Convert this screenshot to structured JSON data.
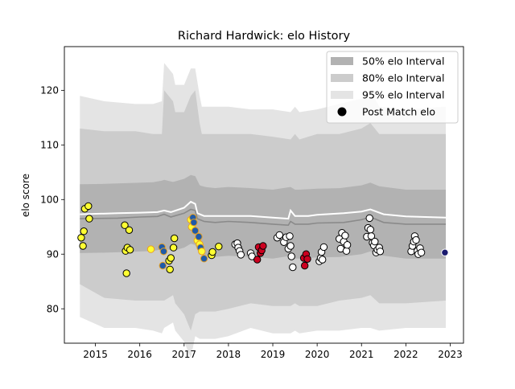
{
  "chart_data": {
    "type": "scatter",
    "title": "Richard Hardwick: elo History",
    "xlabel": "",
    "ylabel": "elo score",
    "xlim": [
      2014.3,
      2023.3
    ],
    "ylim": [
      73.7,
      128
    ],
    "x_ticks": [
      2015,
      2016,
      2017,
      2018,
      2019,
      2020,
      2021,
      2022,
      2023
    ],
    "y_ticks": [
      80,
      90,
      100,
      110,
      120
    ],
    "grid": false,
    "legend_position": "top-right",
    "legend": [
      {
        "label": "50% elo Interval",
        "kind": "band",
        "color": "#b2b2b2"
      },
      {
        "label": "80% elo Interval",
        "kind": "band",
        "color": "#cccccc"
      },
      {
        "label": "95% elo Interval",
        "kind": "band",
        "color": "#e4e4e4"
      },
      {
        "label": "Post Match elo",
        "kind": "marker",
        "color": "#000000"
      }
    ],
    "bands": {
      "x": [
        2014.65,
        2015.2,
        2015.9,
        2016.3,
        2016.5,
        2016.55,
        2016.75,
        2016.8,
        2017.0,
        2017.15,
        2017.25,
        2017.35,
        2017.4,
        2017.5,
        2017.7,
        2018.0,
        2018.5,
        2019.0,
        2019.4,
        2019.5,
        2019.6,
        2020.0,
        2020.5,
        2021.0,
        2021.2,
        2021.4,
        2022.0,
        2022.9
      ],
      "i95": {
        "upper": [
          119,
          118,
          117.5,
          117.5,
          118,
          125,
          123,
          121,
          121,
          124,
          124,
          119,
          117,
          117,
          117,
          117,
          116.5,
          116.5,
          116,
          117,
          116,
          116.5,
          117.5,
          118.5,
          120,
          117,
          116.5,
          117
        ],
        "lower": [
          78.5,
          76.5,
          76.5,
          76,
          75.5,
          76.5,
          77.5,
          76,
          74,
          71,
          75,
          74.5,
          74.5,
          74.5,
          74.5,
          75,
          76.5,
          75.5,
          75.5,
          76,
          75.5,
          76,
          76,
          76.5,
          76.5,
          76,
          76.5,
          76.5
        ]
      },
      "i80": {
        "upper": [
          113,
          112.5,
          112.5,
          112,
          112,
          120,
          118,
          116,
          116,
          119,
          120,
          114,
          112,
          112,
          112,
          112,
          112,
          111.5,
          111,
          112,
          111,
          112,
          112,
          113,
          114,
          112,
          112,
          112
        ]
      }
    },
    "series": [
      {
        "role": "expected_elo_white",
        "x": [
          2014.65,
          2015.5,
          2016.0,
          2016.4,
          2016.55,
          2016.7,
          2017.0,
          2017.15,
          2017.25,
          2017.3,
          2017.45,
          2017.7,
          2018.0,
          2018.5,
          2019.0,
          2019.35,
          2019.4,
          2019.5,
          2019.8,
          2020.0,
          2020.6,
          2021.0,
          2021.2,
          2021.5,
          2022.0,
          2022.9
        ],
        "y": [
          97.3,
          97.5,
          97.6,
          97.7,
          98.0,
          97.7,
          98.5,
          99.6,
          99.2,
          97.5,
          97.0,
          97.0,
          97.0,
          97.0,
          96.7,
          96.5,
          98.0,
          97.0,
          97.0,
          97.2,
          97.5,
          97.8,
          98.2,
          97.3,
          96.9,
          96.7
        ]
      },
      {
        "role": "median_elo_dark",
        "x": [
          2014.65,
          2015.5,
          2016.0,
          2016.4,
          2016.55,
          2016.7,
          2017.0,
          2017.15,
          2017.25,
          2017.3,
          2017.45,
          2017.7,
          2018.0,
          2018.5,
          2019.0,
          2019.35,
          2019.4,
          2019.5,
          2019.8,
          2020.0,
          2020.6,
          2021.0,
          2021.2,
          2021.5,
          2022.0,
          2022.9
        ],
        "y": [
          96.5,
          96.6,
          96.8,
          96.9,
          97.3,
          96.8,
          97.5,
          98.2,
          98.0,
          96.5,
          96.0,
          95.8,
          96.0,
          95.8,
          95.5,
          95.3,
          96.0,
          95.5,
          95.5,
          95.7,
          95.8,
          96.3,
          96.8,
          95.8,
          95.5,
          95.5
        ]
      }
    ],
    "points": [
      {
        "x": 2014.68,
        "y": 93.0,
        "fill": "#ffff33",
        "edge": "#000"
      },
      {
        "x": 2014.72,
        "y": 91.5,
        "fill": "#ffff33",
        "edge": "#000"
      },
      {
        "x": 2014.74,
        "y": 94.2,
        "fill": "#ffff33",
        "edge": "#000"
      },
      {
        "x": 2014.76,
        "y": 98.3,
        "fill": "#ffff33",
        "edge": "#000"
      },
      {
        "x": 2014.84,
        "y": 98.8,
        "fill": "#ffff33",
        "edge": "#000"
      },
      {
        "x": 2014.86,
        "y": 96.5,
        "fill": "#ffff33",
        "edge": "#000"
      },
      {
        "x": 2015.66,
        "y": 95.3,
        "fill": "#ffff33",
        "edge": "#000"
      },
      {
        "x": 2015.68,
        "y": 90.6,
        "fill": "#ffff33",
        "edge": "#000"
      },
      {
        "x": 2015.7,
        "y": 86.5,
        "fill": "#ffff33",
        "edge": "#000"
      },
      {
        "x": 2015.72,
        "y": 91.2,
        "fill": "#ffff33",
        "edge": "#000"
      },
      {
        "x": 2015.76,
        "y": 94.4,
        "fill": "#ffff33",
        "edge": "#000"
      },
      {
        "x": 2015.78,
        "y": 90.8,
        "fill": "#ffff33",
        "edge": "#000"
      },
      {
        "x": 2016.25,
        "y": 90.9,
        "fill": "#ffff33",
        "edge": "#e8a020"
      },
      {
        "x": 2016.5,
        "y": 91.3,
        "fill": "#1f5aa8",
        "edge": "#e8a020"
      },
      {
        "x": 2016.52,
        "y": 87.9,
        "fill": "#1f5aa8",
        "edge": "#e8a020"
      },
      {
        "x": 2016.54,
        "y": 90.5,
        "fill": "#1f5aa8",
        "edge": "#e8a020"
      },
      {
        "x": 2016.66,
        "y": 88.8,
        "fill": "#ffff33",
        "edge": "#000"
      },
      {
        "x": 2016.68,
        "y": 87.2,
        "fill": "#ffff33",
        "edge": "#000"
      },
      {
        "x": 2016.7,
        "y": 89.3,
        "fill": "#ffff33",
        "edge": "#000"
      },
      {
        "x": 2016.76,
        "y": 91.2,
        "fill": "#ffff33",
        "edge": "#000"
      },
      {
        "x": 2016.78,
        "y": 92.9,
        "fill": "#ffff33",
        "edge": "#000"
      },
      {
        "x": 2017.15,
        "y": 96.3,
        "fill": "#ffff33",
        "edge": "#e8a020"
      },
      {
        "x": 2017.17,
        "y": 95.0,
        "fill": "#ffff33",
        "edge": "#e8a020"
      },
      {
        "x": 2017.2,
        "y": 96.7,
        "fill": "#1f5aa8",
        "edge": "#e8a020"
      },
      {
        "x": 2017.22,
        "y": 95.8,
        "fill": "#1f5aa8",
        "edge": "#e8a020"
      },
      {
        "x": 2017.25,
        "y": 94.3,
        "fill": "#1f5aa8",
        "edge": "#e8a020"
      },
      {
        "x": 2017.3,
        "y": 92.5,
        "fill": "#ffff33",
        "edge": "#e8a020"
      },
      {
        "x": 2017.33,
        "y": 93.2,
        "fill": "#1f5aa8",
        "edge": "#e8a020"
      },
      {
        "x": 2017.35,
        "y": 91.8,
        "fill": "#ffff33",
        "edge": "#e8a020"
      },
      {
        "x": 2017.37,
        "y": 91.2,
        "fill": "#1f5aa8",
        "edge": "#e8a020"
      },
      {
        "x": 2017.4,
        "y": 90.5,
        "fill": "#ffff33",
        "edge": "#e8a020"
      },
      {
        "x": 2017.45,
        "y": 89.2,
        "fill": "#1f5aa8",
        "edge": "#e8a020"
      },
      {
        "x": 2017.62,
        "y": 89.8,
        "fill": "#ffff33",
        "edge": "#000"
      },
      {
        "x": 2017.64,
        "y": 90.4,
        "fill": "#ffff33",
        "edge": "#000"
      },
      {
        "x": 2017.78,
        "y": 91.4,
        "fill": "#ffff33",
        "edge": "#000"
      },
      {
        "x": 2018.15,
        "y": 91.8,
        "fill": "#ffffff",
        "edge": "#000"
      },
      {
        "x": 2018.2,
        "y": 92.0,
        "fill": "#ffffff",
        "edge": "#000"
      },
      {
        "x": 2018.22,
        "y": 91.2,
        "fill": "#ffffff",
        "edge": "#000"
      },
      {
        "x": 2018.25,
        "y": 90.6,
        "fill": "#ffffff",
        "edge": "#000"
      },
      {
        "x": 2018.28,
        "y": 89.9,
        "fill": "#ffffff",
        "edge": "#000"
      },
      {
        "x": 2018.5,
        "y": 90.2,
        "fill": "#ffffff",
        "edge": "#000"
      },
      {
        "x": 2018.53,
        "y": 89.6,
        "fill": "#ffffff",
        "edge": "#000"
      },
      {
        "x": 2018.65,
        "y": 89.0,
        "fill": "#cc0020",
        "edge": "#000"
      },
      {
        "x": 2018.68,
        "y": 91.3,
        "fill": "#cc0020",
        "edge": "#000"
      },
      {
        "x": 2018.72,
        "y": 90.2,
        "fill": "#cc0020",
        "edge": "#000"
      },
      {
        "x": 2018.75,
        "y": 90.7,
        "fill": "#cc0020",
        "edge": "#000"
      },
      {
        "x": 2018.78,
        "y": 91.5,
        "fill": "#cc0020",
        "edge": "#000"
      },
      {
        "x": 2019.1,
        "y": 93.0,
        "fill": "#ffffff",
        "edge": "#000"
      },
      {
        "x": 2019.15,
        "y": 93.5,
        "fill": "#ffffff",
        "edge": "#000"
      },
      {
        "x": 2019.25,
        "y": 92.2,
        "fill": "#ffffff",
        "edge": "#000"
      },
      {
        "x": 2019.3,
        "y": 93.1,
        "fill": "#ffffff",
        "edge": "#000"
      },
      {
        "x": 2019.35,
        "y": 91.0,
        "fill": "#ffffff",
        "edge": "#000"
      },
      {
        "x": 2019.38,
        "y": 93.3,
        "fill": "#ffffff",
        "edge": "#000"
      },
      {
        "x": 2019.4,
        "y": 91.5,
        "fill": "#ffffff",
        "edge": "#000"
      },
      {
        "x": 2019.42,
        "y": 89.6,
        "fill": "#ffffff",
        "edge": "#000"
      },
      {
        "x": 2019.45,
        "y": 87.6,
        "fill": "#ffffff",
        "edge": "#000"
      },
      {
        "x": 2019.7,
        "y": 89.3,
        "fill": "#cc0020",
        "edge": "#000"
      },
      {
        "x": 2019.72,
        "y": 87.9,
        "fill": "#cc0020",
        "edge": "#000"
      },
      {
        "x": 2019.75,
        "y": 90.0,
        "fill": "#cc0020",
        "edge": "#000"
      },
      {
        "x": 2019.78,
        "y": 89.1,
        "fill": "#cc0020",
        "edge": "#000"
      },
      {
        "x": 2020.05,
        "y": 88.7,
        "fill": "#ffffff",
        "edge": "#000"
      },
      {
        "x": 2020.08,
        "y": 89.3,
        "fill": "#ffffff",
        "edge": "#000"
      },
      {
        "x": 2020.1,
        "y": 90.4,
        "fill": "#ffffff",
        "edge": "#000"
      },
      {
        "x": 2020.12,
        "y": 89.0,
        "fill": "#ffffff",
        "edge": "#000"
      },
      {
        "x": 2020.15,
        "y": 91.3,
        "fill": "#ffffff",
        "edge": "#000"
      },
      {
        "x": 2020.5,
        "y": 92.8,
        "fill": "#ffffff",
        "edge": "#000"
      },
      {
        "x": 2020.53,
        "y": 91.0,
        "fill": "#ffffff",
        "edge": "#000"
      },
      {
        "x": 2020.56,
        "y": 93.9,
        "fill": "#ffffff",
        "edge": "#000"
      },
      {
        "x": 2020.6,
        "y": 92.3,
        "fill": "#ffffff",
        "edge": "#000"
      },
      {
        "x": 2020.63,
        "y": 93.4,
        "fill": "#ffffff",
        "edge": "#000"
      },
      {
        "x": 2020.66,
        "y": 90.6,
        "fill": "#ffffff",
        "edge": "#000"
      },
      {
        "x": 2020.68,
        "y": 91.7,
        "fill": "#ffffff",
        "edge": "#000"
      },
      {
        "x": 2021.12,
        "y": 93.2,
        "fill": "#ffffff",
        "edge": "#000"
      },
      {
        "x": 2021.15,
        "y": 94.8,
        "fill": "#ffffff",
        "edge": "#000"
      },
      {
        "x": 2021.18,
        "y": 96.6,
        "fill": "#ffffff",
        "edge": "#000"
      },
      {
        "x": 2021.2,
        "y": 94.5,
        "fill": "#ffffff",
        "edge": "#000"
      },
      {
        "x": 2021.22,
        "y": 93.3,
        "fill": "#ffffff",
        "edge": "#000"
      },
      {
        "x": 2021.25,
        "y": 92.1,
        "fill": "#ffffff",
        "edge": "#000"
      },
      {
        "x": 2021.28,
        "y": 91.6,
        "fill": "#ffffff",
        "edge": "#000"
      },
      {
        "x": 2021.3,
        "y": 92.3,
        "fill": "#ffffff",
        "edge": "#000"
      },
      {
        "x": 2021.33,
        "y": 90.3,
        "fill": "#ffffff",
        "edge": "#000"
      },
      {
        "x": 2021.36,
        "y": 90.8,
        "fill": "#ffffff",
        "edge": "#000"
      },
      {
        "x": 2021.4,
        "y": 91.2,
        "fill": "#ffffff",
        "edge": "#000"
      },
      {
        "x": 2021.42,
        "y": 90.5,
        "fill": "#ffffff",
        "edge": "#000"
      },
      {
        "x": 2022.12,
        "y": 90.5,
        "fill": "#ffffff",
        "edge": "#000"
      },
      {
        "x": 2022.15,
        "y": 91.5,
        "fill": "#ffffff",
        "edge": "#000"
      },
      {
        "x": 2022.18,
        "y": 92.3,
        "fill": "#ffffff",
        "edge": "#000"
      },
      {
        "x": 2022.2,
        "y": 93.3,
        "fill": "#ffffff",
        "edge": "#000"
      },
      {
        "x": 2022.23,
        "y": 92.6,
        "fill": "#ffffff",
        "edge": "#000"
      },
      {
        "x": 2022.26,
        "y": 90.6,
        "fill": "#ffffff",
        "edge": "#000"
      },
      {
        "x": 2022.28,
        "y": 90.0,
        "fill": "#ffffff",
        "edge": "#000"
      },
      {
        "x": 2022.32,
        "y": 91.1,
        "fill": "#ffffff",
        "edge": "#000"
      },
      {
        "x": 2022.35,
        "y": 90.3,
        "fill": "#ffffff",
        "edge": "#000"
      },
      {
        "x": 2022.88,
        "y": 90.3,
        "fill": "#1a1a6e",
        "edge": "#ffffff"
      }
    ]
  }
}
